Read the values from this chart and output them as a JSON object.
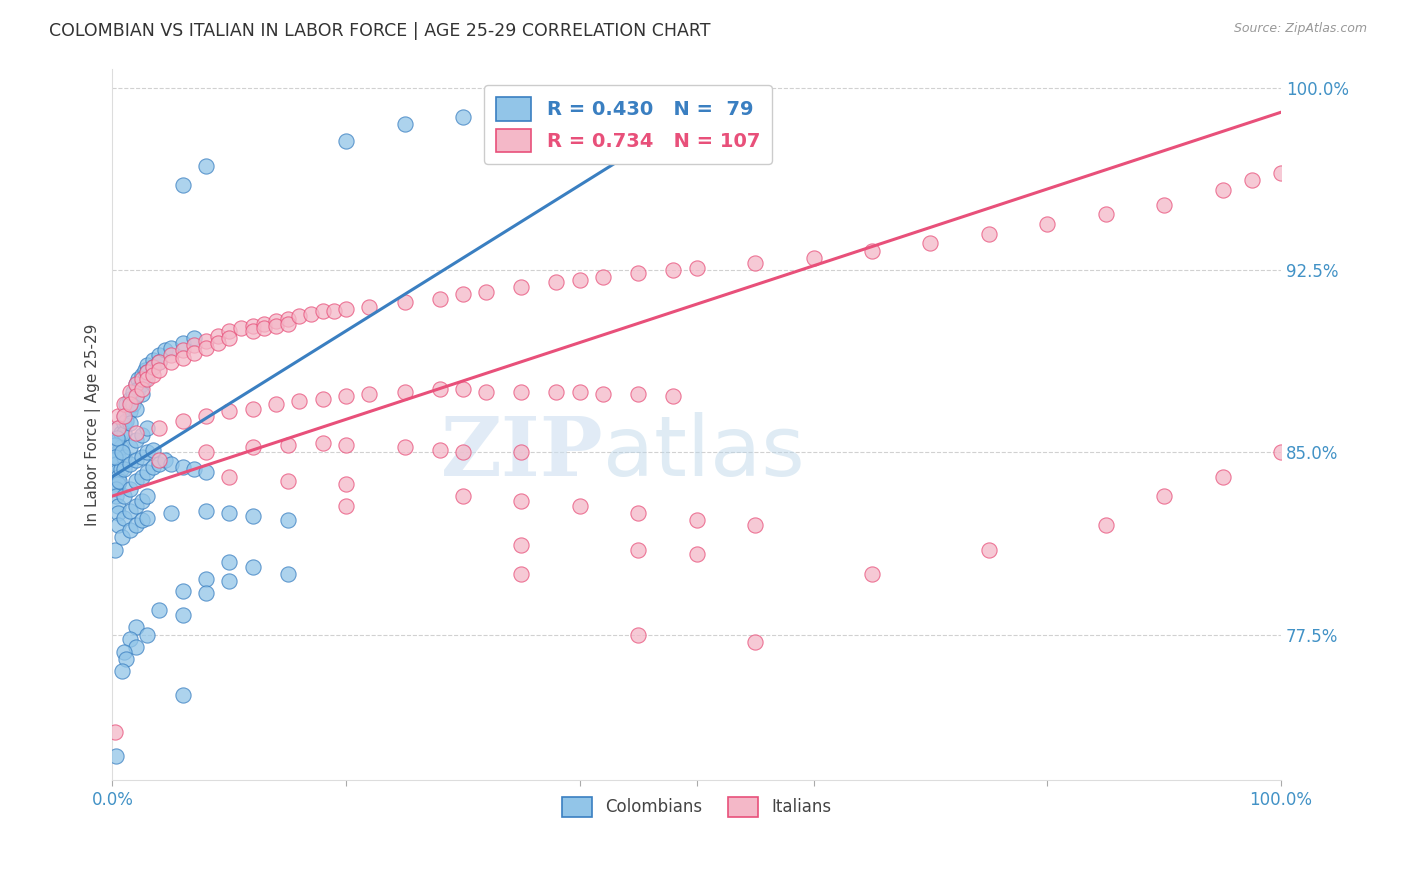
{
  "title": "COLOMBIAN VS ITALIAN IN LABOR FORCE | AGE 25-29 CORRELATION CHART",
  "source": "Source: ZipAtlas.com",
  "ylabel": "In Labor Force | Age 25-29",
  "x_min": 0.0,
  "x_max": 1.0,
  "y_min": 0.715,
  "y_max": 1.008,
  "colombian_color": "#92c5e8",
  "italian_color": "#f4b8c8",
  "colombian_line_color": "#3a7fc1",
  "italian_line_color": "#e8507a",
  "r_colombian": 0.43,
  "n_colombian": 79,
  "r_italian": 0.734,
  "n_italian": 107,
  "watermark_zip": "ZIP",
  "watermark_atlas": "atlas",
  "background_color": "#ffffff",
  "grid_color": "#cccccc",
  "col_line_x": [
    0.0,
    0.5
  ],
  "col_line_y": [
    0.84,
    0.99
  ],
  "ita_line_x": [
    0.0,
    1.0
  ],
  "ita_line_y": [
    0.832,
    0.99
  ],
  "colombian_scatter": [
    [
      0.005,
      0.86
    ],
    [
      0.005,
      0.855
    ],
    [
      0.005,
      0.85
    ],
    [
      0.005,
      0.848
    ],
    [
      0.007,
      0.858
    ],
    [
      0.007,
      0.852
    ],
    [
      0.01,
      0.865
    ],
    [
      0.01,
      0.862
    ],
    [
      0.01,
      0.858
    ],
    [
      0.012,
      0.87
    ],
    [
      0.012,
      0.863
    ],
    [
      0.015,
      0.872
    ],
    [
      0.015,
      0.867
    ],
    [
      0.015,
      0.862
    ],
    [
      0.018,
      0.875
    ],
    [
      0.018,
      0.87
    ],
    [
      0.02,
      0.878
    ],
    [
      0.02,
      0.873
    ],
    [
      0.02,
      0.868
    ],
    [
      0.022,
      0.88
    ],
    [
      0.022,
      0.876
    ],
    [
      0.025,
      0.882
    ],
    [
      0.025,
      0.878
    ],
    [
      0.025,
      0.874
    ],
    [
      0.028,
      0.884
    ],
    [
      0.028,
      0.88
    ],
    [
      0.03,
      0.886
    ],
    [
      0.03,
      0.883
    ],
    [
      0.035,
      0.888
    ],
    [
      0.035,
      0.885
    ],
    [
      0.04,
      0.89
    ],
    [
      0.04,
      0.887
    ],
    [
      0.045,
      0.892
    ],
    [
      0.05,
      0.893
    ],
    [
      0.06,
      0.895
    ],
    [
      0.07,
      0.897
    ],
    [
      0.003,
      0.845
    ],
    [
      0.003,
      0.842
    ],
    [
      0.005,
      0.84
    ],
    [
      0.005,
      0.837
    ],
    [
      0.007,
      0.843
    ],
    [
      0.01,
      0.848
    ],
    [
      0.015,
      0.852
    ],
    [
      0.02,
      0.855
    ],
    [
      0.025,
      0.857
    ],
    [
      0.03,
      0.86
    ],
    [
      0.002,
      0.853
    ],
    [
      0.002,
      0.848
    ],
    [
      0.004,
      0.856
    ],
    [
      0.008,
      0.85
    ],
    [
      0.003,
      0.835
    ],
    [
      0.003,
      0.832
    ],
    [
      0.006,
      0.838
    ],
    [
      0.01,
      0.843
    ],
    [
      0.015,
      0.845
    ],
    [
      0.02,
      0.847
    ],
    [
      0.025,
      0.848
    ],
    [
      0.03,
      0.85
    ],
    [
      0.035,
      0.851
    ],
    [
      0.005,
      0.828
    ],
    [
      0.005,
      0.825
    ],
    [
      0.01,
      0.832
    ],
    [
      0.015,
      0.835
    ],
    [
      0.02,
      0.838
    ],
    [
      0.025,
      0.84
    ],
    [
      0.03,
      0.842
    ],
    [
      0.035,
      0.844
    ],
    [
      0.04,
      0.845
    ],
    [
      0.045,
      0.847
    ],
    [
      0.05,
      0.845
    ],
    [
      0.06,
      0.844
    ],
    [
      0.07,
      0.843
    ],
    [
      0.08,
      0.842
    ],
    [
      0.005,
      0.82
    ],
    [
      0.01,
      0.823
    ],
    [
      0.015,
      0.826
    ],
    [
      0.02,
      0.828
    ],
    [
      0.025,
      0.83
    ],
    [
      0.03,
      0.832
    ],
    [
      0.002,
      0.81
    ],
    [
      0.008,
      0.815
    ],
    [
      0.015,
      0.818
    ],
    [
      0.02,
      0.82
    ],
    [
      0.025,
      0.822
    ],
    [
      0.03,
      0.823
    ],
    [
      0.05,
      0.825
    ],
    [
      0.08,
      0.826
    ],
    [
      0.1,
      0.825
    ],
    [
      0.12,
      0.824
    ],
    [
      0.15,
      0.822
    ],
    [
      0.1,
      0.805
    ],
    [
      0.12,
      0.803
    ],
    [
      0.15,
      0.8
    ],
    [
      0.08,
      0.798
    ],
    [
      0.1,
      0.797
    ],
    [
      0.06,
      0.793
    ],
    [
      0.08,
      0.792
    ],
    [
      0.04,
      0.785
    ],
    [
      0.06,
      0.783
    ],
    [
      0.02,
      0.778
    ],
    [
      0.03,
      0.775
    ],
    [
      0.015,
      0.773
    ],
    [
      0.02,
      0.77
    ],
    [
      0.01,
      0.768
    ],
    [
      0.012,
      0.765
    ],
    [
      0.008,
      0.76
    ],
    [
      0.06,
      0.75
    ],
    [
      0.06,
      0.96
    ],
    [
      0.08,
      0.968
    ],
    [
      0.2,
      0.978
    ],
    [
      0.25,
      0.985
    ],
    [
      0.3,
      0.988
    ],
    [
      0.35,
      0.99
    ],
    [
      0.4,
      0.992
    ],
    [
      0.45,
      0.993
    ],
    [
      0.5,
      0.994
    ],
    [
      0.55,
      0.995
    ],
    [
      0.003,
      0.725
    ]
  ],
  "italian_scatter": [
    [
      0.005,
      0.865
    ],
    [
      0.005,
      0.86
    ],
    [
      0.01,
      0.87
    ],
    [
      0.01,
      0.865
    ],
    [
      0.015,
      0.875
    ],
    [
      0.015,
      0.87
    ],
    [
      0.02,
      0.878
    ],
    [
      0.02,
      0.873
    ],
    [
      0.025,
      0.88
    ],
    [
      0.025,
      0.876
    ],
    [
      0.03,
      0.883
    ],
    [
      0.03,
      0.88
    ],
    [
      0.035,
      0.885
    ],
    [
      0.035,
      0.882
    ],
    [
      0.04,
      0.887
    ],
    [
      0.04,
      0.884
    ],
    [
      0.05,
      0.89
    ],
    [
      0.05,
      0.887
    ],
    [
      0.06,
      0.892
    ],
    [
      0.06,
      0.889
    ],
    [
      0.07,
      0.894
    ],
    [
      0.07,
      0.891
    ],
    [
      0.08,
      0.896
    ],
    [
      0.08,
      0.893
    ],
    [
      0.09,
      0.898
    ],
    [
      0.09,
      0.895
    ],
    [
      0.1,
      0.9
    ],
    [
      0.1,
      0.897
    ],
    [
      0.11,
      0.901
    ],
    [
      0.12,
      0.902
    ],
    [
      0.12,
      0.9
    ],
    [
      0.13,
      0.903
    ],
    [
      0.13,
      0.901
    ],
    [
      0.14,
      0.904
    ],
    [
      0.14,
      0.902
    ],
    [
      0.15,
      0.905
    ],
    [
      0.15,
      0.903
    ],
    [
      0.16,
      0.906
    ],
    [
      0.17,
      0.907
    ],
    [
      0.18,
      0.908
    ],
    [
      0.19,
      0.908
    ],
    [
      0.2,
      0.909
    ],
    [
      0.22,
      0.91
    ],
    [
      0.25,
      0.912
    ],
    [
      0.28,
      0.913
    ],
    [
      0.3,
      0.915
    ],
    [
      0.32,
      0.916
    ],
    [
      0.35,
      0.918
    ],
    [
      0.38,
      0.92
    ],
    [
      0.4,
      0.921
    ],
    [
      0.42,
      0.922
    ],
    [
      0.45,
      0.924
    ],
    [
      0.48,
      0.925
    ],
    [
      0.5,
      0.926
    ],
    [
      0.55,
      0.928
    ],
    [
      0.6,
      0.93
    ],
    [
      0.65,
      0.933
    ],
    [
      0.7,
      0.936
    ],
    [
      0.75,
      0.94
    ],
    [
      0.8,
      0.944
    ],
    [
      0.85,
      0.948
    ],
    [
      0.9,
      0.952
    ],
    [
      0.95,
      0.958
    ],
    [
      0.975,
      0.962
    ],
    [
      1.0,
      0.965
    ],
    [
      0.02,
      0.858
    ],
    [
      0.04,
      0.86
    ],
    [
      0.06,
      0.863
    ],
    [
      0.08,
      0.865
    ],
    [
      0.1,
      0.867
    ],
    [
      0.12,
      0.868
    ],
    [
      0.14,
      0.87
    ],
    [
      0.16,
      0.871
    ],
    [
      0.18,
      0.872
    ],
    [
      0.2,
      0.873
    ],
    [
      0.22,
      0.874
    ],
    [
      0.25,
      0.875
    ],
    [
      0.28,
      0.876
    ],
    [
      0.3,
      0.876
    ],
    [
      0.32,
      0.875
    ],
    [
      0.35,
      0.875
    ],
    [
      0.38,
      0.875
    ],
    [
      0.4,
      0.875
    ],
    [
      0.42,
      0.874
    ],
    [
      0.45,
      0.874
    ],
    [
      0.48,
      0.873
    ],
    [
      0.04,
      0.847
    ],
    [
      0.08,
      0.85
    ],
    [
      0.12,
      0.852
    ],
    [
      0.15,
      0.853
    ],
    [
      0.18,
      0.854
    ],
    [
      0.2,
      0.853
    ],
    [
      0.25,
      0.852
    ],
    [
      0.28,
      0.851
    ],
    [
      0.3,
      0.85
    ],
    [
      0.35,
      0.85
    ],
    [
      0.1,
      0.84
    ],
    [
      0.15,
      0.838
    ],
    [
      0.2,
      0.837
    ],
    [
      0.2,
      0.828
    ],
    [
      0.3,
      0.832
    ],
    [
      0.35,
      0.83
    ],
    [
      0.4,
      0.828
    ],
    [
      0.45,
      0.825
    ],
    [
      0.5,
      0.822
    ],
    [
      0.55,
      0.82
    ],
    [
      0.35,
      0.812
    ],
    [
      0.45,
      0.81
    ],
    [
      0.5,
      0.808
    ],
    [
      0.35,
      0.8
    ],
    [
      0.002,
      0.735
    ],
    [
      0.45,
      0.775
    ],
    [
      0.55,
      0.772
    ],
    [
      0.65,
      0.8
    ],
    [
      0.75,
      0.81
    ],
    [
      0.85,
      0.82
    ],
    [
      0.9,
      0.832
    ],
    [
      0.95,
      0.84
    ],
    [
      1.0,
      0.85
    ]
  ]
}
